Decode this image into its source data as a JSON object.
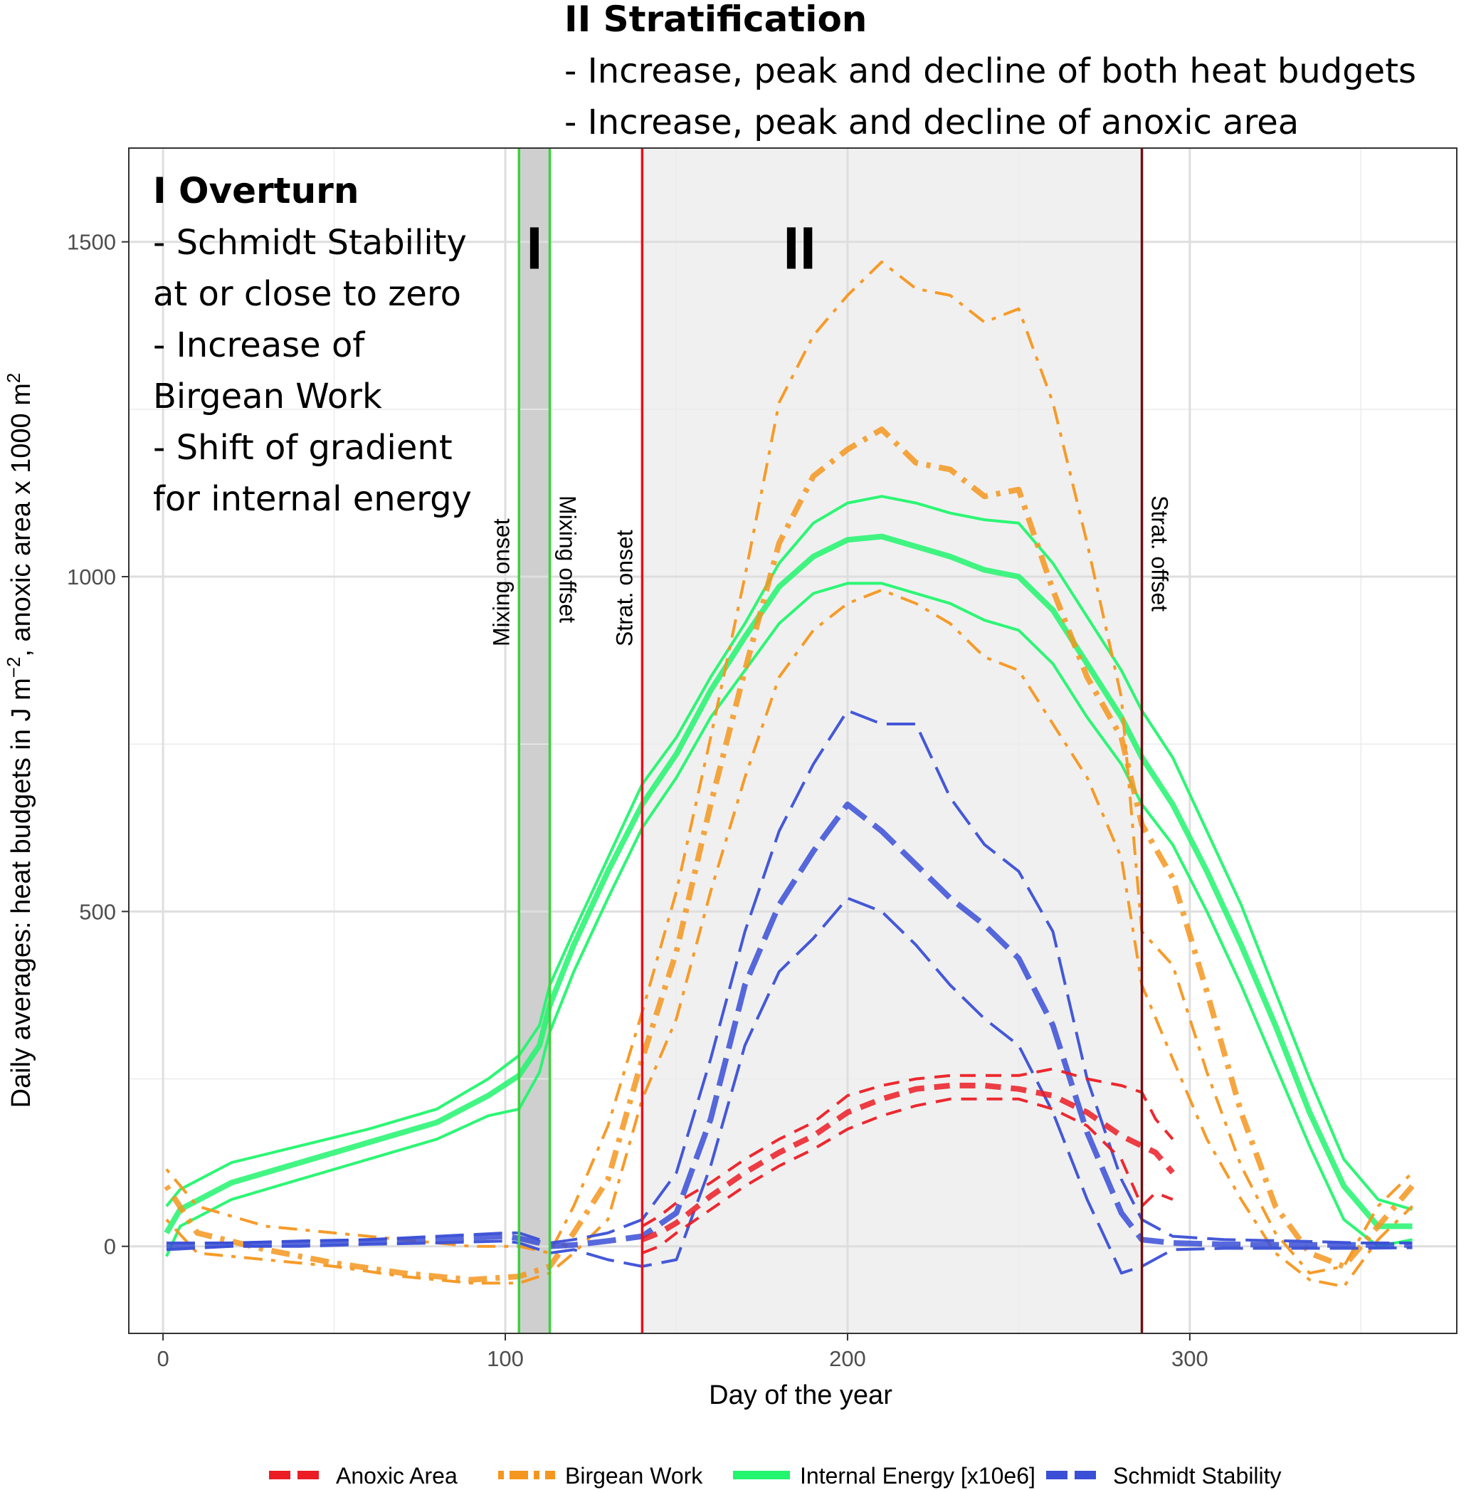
{
  "chart_data": {
    "type": "line",
    "title": "",
    "xlabel": "Day of the year",
    "ylabel": "Daily averages: heat budgets in J m",
    "ylabel_sup1": "−2",
    "ylabel_mid": ", anoxic area x 1000 m",
    "ylabel_sup2": "2",
    "xlim": [
      -10,
      378
    ],
    "ylim": [
      -130,
      1640
    ],
    "x_ticks": [
      0,
      100,
      200,
      300
    ],
    "y_ticks": [
      0,
      500,
      1000,
      1500
    ],
    "grid": true,
    "legend_position": "bottom",
    "phase_markers": [
      {
        "label": "Mixing onset",
        "day": 104,
        "color": "#3dd13d"
      },
      {
        "label": "Mixing offset",
        "day": 113,
        "color": "#3dd13d"
      },
      {
        "label": "Strat. onset",
        "day": 140,
        "color": "#e8101a"
      },
      {
        "label": "Strat. offset",
        "day": 286,
        "color": "#6e1010"
      }
    ],
    "periods": [
      {
        "label": "I",
        "start": 104,
        "end": 113,
        "fill": "#cfcfcf"
      },
      {
        "label": "II",
        "start": 140,
        "end": 286,
        "fill": "#f0f0f0"
      }
    ],
    "annotations": {
      "overturn_title": "I Overturn",
      "overturn_lines": [
        "- Schmidt Stability",
        "at or close to zero",
        "- Increase of",
        "Birgean Work",
        "- Shift of gradient",
        "for internal energy"
      ],
      "strat_title": "II Stratification",
      "strat_lines": [
        "- Increase, peak and decline of both heat budgets",
        "- Increase, peak and decline of anoxic area"
      ]
    },
    "series": [
      {
        "name": "Internal Energy [x10e6]",
        "color": "#22f56e",
        "dash": "solid",
        "x": [
          1,
          5,
          20,
          40,
          60,
          80,
          95,
          104,
          110,
          113,
          120,
          130,
          140,
          150,
          160,
          170,
          180,
          190,
          200,
          210,
          220,
          230,
          240,
          250,
          260,
          270,
          280,
          286,
          295,
          305,
          315,
          325,
          335,
          345,
          355,
          365
        ],
        "upper": [
          60,
          85,
          125,
          150,
          175,
          205,
          250,
          285,
          330,
          390,
          470,
          580,
          690,
          760,
          850,
          930,
          1020,
          1080,
          1110,
          1120,
          1110,
          1095,
          1085,
          1080,
          1020,
          940,
          860,
          800,
          730,
          620,
          510,
          380,
          250,
          130,
          70,
          55
        ],
        "values": [
          20,
          55,
          95,
          125,
          155,
          185,
          225,
          255,
          300,
          360,
          450,
          560,
          660,
          735,
          830,
          910,
          985,
          1030,
          1055,
          1060,
          1045,
          1030,
          1010,
          1000,
          950,
          870,
          790,
          730,
          660,
          560,
          450,
          330,
          200,
          90,
          30,
          30
        ],
        "lower": [
          -15,
          30,
          70,
          100,
          130,
          160,
          195,
          205,
          260,
          320,
          410,
          520,
          625,
          700,
          790,
          860,
          930,
          975,
          990,
          990,
          975,
          960,
          935,
          920,
          870,
          790,
          720,
          660,
          600,
          500,
          390,
          270,
          150,
          40,
          0,
          10
        ]
      },
      {
        "name": "Birgean Work",
        "color": "#f5961e",
        "dash": "dotdash",
        "x": [
          1,
          10,
          30,
          50,
          70,
          90,
          104,
          113,
          120,
          130,
          140,
          150,
          160,
          170,
          180,
          190,
          200,
          210,
          220,
          230,
          240,
          250,
          260,
          270,
          280,
          286,
          295,
          305,
          315,
          325,
          335,
          345,
          355,
          365
        ],
        "upper": [
          115,
          60,
          30,
          20,
          10,
          0,
          0,
          -10,
          60,
          180,
          350,
          530,
          760,
          1000,
          1260,
          1360,
          1420,
          1470,
          1430,
          1420,
          1380,
          1400,
          1260,
          1050,
          820,
          470,
          420,
          260,
          120,
          20,
          -40,
          -30,
          60,
          110
        ],
        "values": [
          90,
          20,
          -5,
          -25,
          -40,
          -50,
          -45,
          -30,
          20,
          100,
          280,
          440,
          660,
          860,
          1050,
          1150,
          1190,
          1220,
          1170,
          1160,
          1120,
          1130,
          980,
          850,
          760,
          630,
          550,
          380,
          200,
          60,
          -10,
          -30,
          30,
          90
        ],
        "lower": [
          40,
          -10,
          -20,
          -30,
          -45,
          -55,
          -55,
          -40,
          -10,
          40,
          220,
          340,
          530,
          700,
          850,
          920,
          960,
          980,
          960,
          930,
          880,
          860,
          780,
          700,
          580,
          390,
          280,
          160,
          70,
          -10,
          -50,
          -60,
          10,
          60
        ]
      },
      {
        "name": "Schmidt Stability",
        "color": "#3a4fd6",
        "dash": "longdash",
        "x": [
          1,
          20,
          40,
          60,
          80,
          100,
          104,
          110,
          113,
          120,
          130,
          140,
          150,
          160,
          170,
          180,
          190,
          200,
          210,
          220,
          230,
          240,
          250,
          260,
          270,
          280,
          286,
          295,
          310,
          330,
          350,
          365
        ],
        "upper": [
          5,
          5,
          8,
          10,
          15,
          20,
          20,
          10,
          5,
          10,
          20,
          40,
          110,
          280,
          470,
          620,
          720,
          800,
          780,
          780,
          670,
          600,
          560,
          470,
          250,
          100,
          40,
          15,
          10,
          8,
          5,
          5
        ],
        "values": [
          0,
          3,
          5,
          8,
          10,
          15,
          12,
          5,
          0,
          2,
          8,
          15,
          50,
          190,
          390,
          510,
          590,
          660,
          620,
          570,
          520,
          480,
          430,
          330,
          170,
          50,
          10,
          5,
          3,
          2,
          2,
          2
        ],
        "lower": [
          -5,
          0,
          0,
          3,
          5,
          8,
          5,
          -5,
          -10,
          -5,
          -20,
          -30,
          -20,
          120,
          300,
          410,
          460,
          520,
          500,
          450,
          390,
          340,
          300,
          200,
          70,
          -40,
          -30,
          -5,
          -3,
          -3,
          -3,
          -2
        ]
      },
      {
        "name": "Anoxic Area",
        "color": "#ec1c24",
        "dash": "dashed",
        "x": [
          140,
          145,
          150,
          160,
          170,
          180,
          190,
          200,
          210,
          220,
          230,
          240,
          250,
          260,
          270,
          280,
          286,
          290,
          295
        ],
        "upper": [
          30,
          45,
          65,
          95,
          130,
          160,
          185,
          225,
          240,
          250,
          255,
          255,
          255,
          265,
          250,
          240,
          230,
          190,
          160
        ],
        "values": [
          10,
          20,
          35,
          75,
          110,
          140,
          165,
          200,
          220,
          235,
          240,
          240,
          235,
          225,
          200,
          165,
          150,
          140,
          110
        ],
        "lower": [
          -10,
          0,
          20,
          55,
          90,
          120,
          145,
          175,
          195,
          210,
          220,
          220,
          220,
          205,
          180,
          130,
          60,
          80,
          70
        ]
      }
    ]
  }
}
